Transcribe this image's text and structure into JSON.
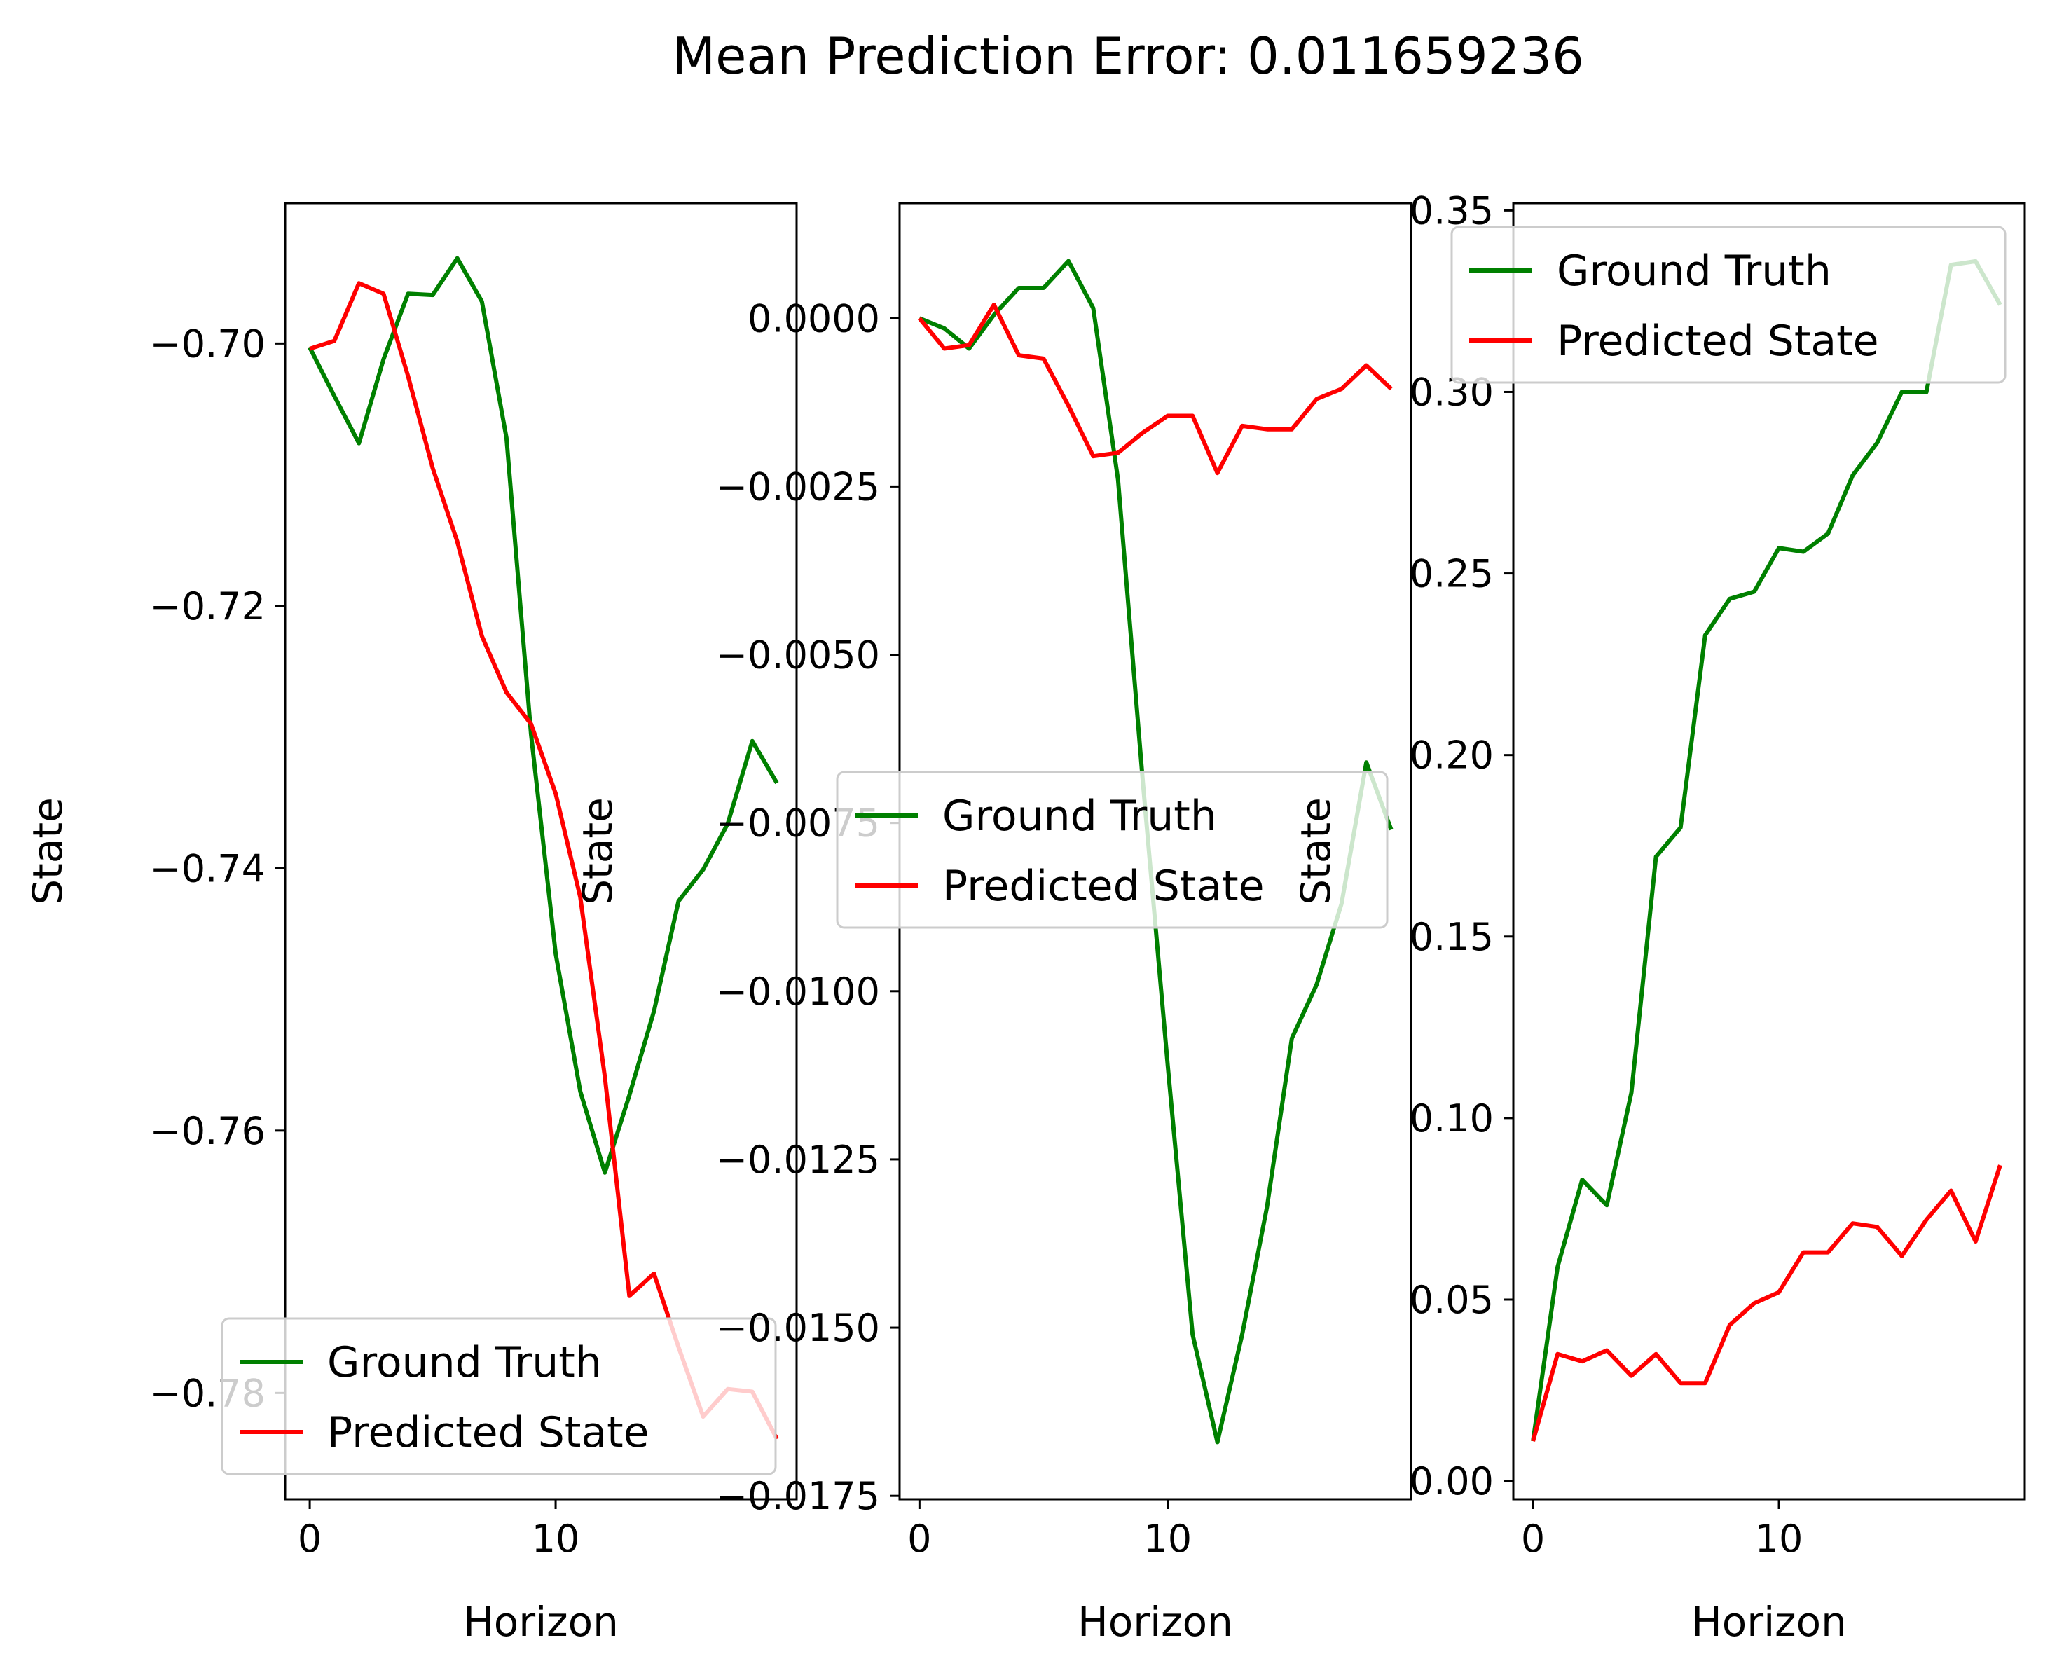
{
  "figure": {
    "title": "Mean Prediction Error: 0.011659236"
  },
  "chart_data": [
    {
      "type": "line",
      "xlabel": "Horizon",
      "ylabel": "State",
      "xlim": [
        -1,
        19.8
      ],
      "ylim": [
        -0.7881,
        -0.6893
      ],
      "xticks": [
        0,
        10
      ],
      "xtick_labels": [
        "0",
        "10"
      ],
      "yticks": [
        -0.7,
        -0.72,
        -0.74,
        -0.76,
        -0.78
      ],
      "ytick_labels": [
        "−0.70",
        "−0.72",
        "−0.74",
        "−0.76",
        "−0.78"
      ],
      "legend_position": "lower center",
      "grid": false,
      "x": [
        0,
        1,
        2,
        3,
        4,
        5,
        6,
        7,
        8,
        9,
        10,
        11,
        12,
        13,
        14,
        15,
        16,
        17,
        18,
        19
      ],
      "series": [
        {
          "name": "Ground Truth",
          "color": "#008000",
          "values": [
            -0.7003,
            -0.704,
            -0.7076,
            -0.7012,
            -0.6962,
            -0.6963,
            -0.6935,
            -0.6968,
            -0.7072,
            -0.7298,
            -0.7465,
            -0.757,
            -0.7632,
            -0.7573,
            -0.7509,
            -0.7425,
            -0.7401,
            -0.7366,
            -0.7303,
            -0.7335
          ]
        },
        {
          "name": "Predicted State",
          "color": "#ff0000",
          "values": [
            -0.7004,
            -0.6998,
            -0.6954,
            -0.6962,
            -0.7025,
            -0.7095,
            -0.7151,
            -0.7223,
            -0.7266,
            -0.729,
            -0.7343,
            -0.7422,
            -0.7559,
            -0.7726,
            -0.7709,
            -0.7765,
            -0.7818,
            -0.7797,
            -0.7799,
            -0.7835
          ]
        }
      ]
    },
    {
      "type": "line",
      "xlabel": "Horizon",
      "ylabel": "State",
      "xlim": [
        -0.8,
        19.8
      ],
      "ylim": [
        -0.01755,
        0.00171
      ],
      "xticks": [
        0,
        10
      ],
      "xtick_labels": [
        "0",
        "10"
      ],
      "yticks": [
        0.0,
        -0.0025,
        -0.005,
        -0.0075,
        -0.01,
        -0.0125,
        -0.015,
        -0.0175
      ],
      "ytick_labels": [
        "0.0000",
        "−0.0025",
        "−0.0050",
        "−0.0075",
        "−0.0100",
        "−0.0125",
        "−0.0150",
        "−0.0175"
      ],
      "legend_position": "center right",
      "grid": false,
      "x": [
        0,
        1,
        2,
        3,
        4,
        5,
        6,
        7,
        8,
        9,
        10,
        11,
        12,
        13,
        14,
        15,
        16,
        17,
        18,
        19
      ],
      "series": [
        {
          "name": "Ground Truth",
          "color": "#008000",
          "values": [
            0.0,
            -0.00015,
            -0.00045,
            5e-05,
            0.00045,
            0.00045,
            0.00085,
            0.00015,
            -0.0024,
            -0.0069,
            -0.0111,
            -0.0151,
            -0.0167,
            -0.0151,
            -0.0132,
            -0.0107,
            -0.0099,
            -0.0087,
            -0.0066,
            -0.0076
          ]
        },
        {
          "name": "Predicted State",
          "color": "#ff0000",
          "values": [
            0.0,
            -0.00045,
            -0.0004,
            0.0002,
            -0.00055,
            -0.0006,
            -0.0013,
            -0.00205,
            -0.002,
            -0.0017,
            -0.00145,
            -0.00145,
            -0.0023,
            -0.0016,
            -0.00165,
            -0.00165,
            -0.0012,
            -0.00105,
            -0.0007,
            -0.00105
          ]
        }
      ]
    },
    {
      "type": "line",
      "xlabel": "Horizon",
      "ylabel": "State",
      "xlim": [
        -0.8,
        20
      ],
      "ylim": [
        -0.005,
        0.352
      ],
      "xticks": [
        0,
        10
      ],
      "xtick_labels": [
        "0",
        "10"
      ],
      "yticks": [
        0.0,
        0.05,
        0.1,
        0.15,
        0.2,
        0.25,
        0.3,
        0.35
      ],
      "ytick_labels": [
        "0.00",
        "0.05",
        "0.10",
        "0.15",
        "0.20",
        "0.25",
        "0.30",
        "0.35"
      ],
      "legend_position": "upper right",
      "grid": false,
      "x": [
        0,
        1,
        2,
        3,
        4,
        5,
        6,
        7,
        8,
        9,
        10,
        11,
        12,
        13,
        14,
        15,
        16,
        17,
        18,
        19
      ],
      "series": [
        {
          "name": "Ground Truth",
          "color": "#008000",
          "values": [
            0.011,
            0.059,
            0.083,
            0.076,
            0.107,
            0.172,
            0.18,
            0.233,
            0.243,
            0.245,
            0.257,
            0.256,
            0.261,
            0.277,
            0.286,
            0.3,
            0.3,
            0.335,
            0.336,
            0.324
          ]
        },
        {
          "name": "Predicted State",
          "color": "#ff0000",
          "values": [
            0.011,
            0.035,
            0.033,
            0.036,
            0.029,
            0.035,
            0.027,
            0.027,
            0.043,
            0.049,
            0.052,
            0.063,
            0.063,
            0.071,
            0.07,
            0.062,
            0.072,
            0.08,
            0.066,
            0.087
          ]
        }
      ]
    }
  ]
}
